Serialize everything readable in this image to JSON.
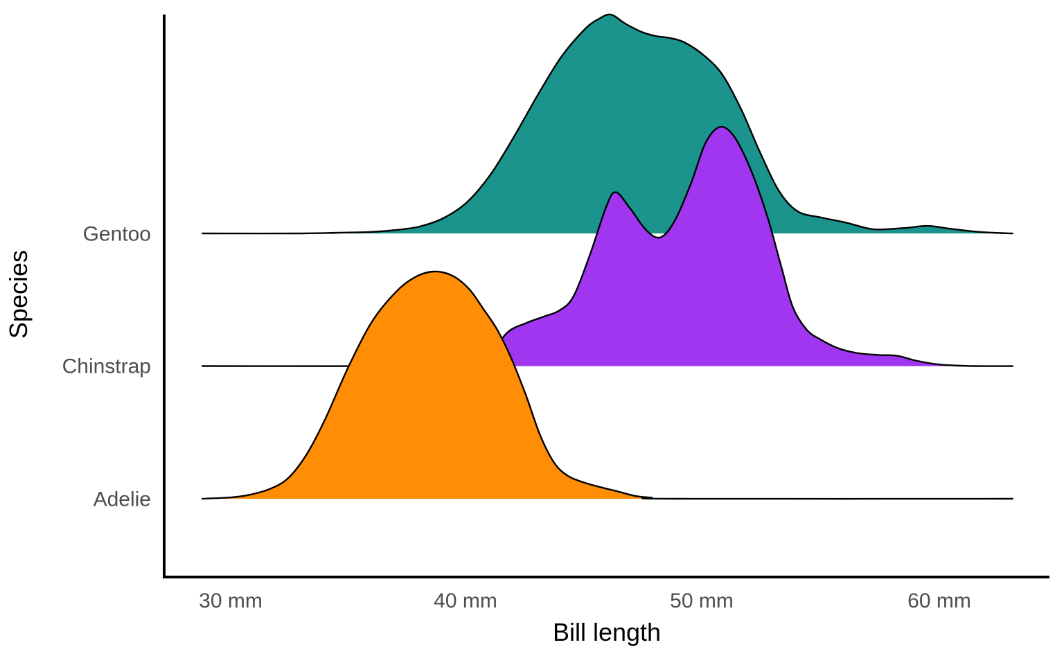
{
  "chart_data": {
    "type": "area",
    "subtype": "ridgeline_density",
    "title": "",
    "xlabel": "Bill length",
    "ylabel": "Species",
    "x_unit": "mm",
    "xlim_mm": [
      27.2,
      63.7
    ],
    "baseline_extent_mm": [
      28.8,
      63.1
    ],
    "grid": "off",
    "legend": "none",
    "x_ticks": [
      {
        "value": 30,
        "label": "30 mm"
      },
      {
        "value": 40,
        "label": "40 mm"
      },
      {
        "value": 50,
        "label": "50 mm"
      },
      {
        "value": 60,
        "label": "60 mm"
      }
    ],
    "rows": [
      "Gentoo",
      "Chinstrap",
      "Adelie"
    ],
    "height_units": "density height expressed so that 1.0 equals the vertical gap between adjacent category baselines",
    "series": [
      {
        "name": "Gentoo",
        "fill": "#1A948D",
        "outline": "#000000",
        "row_index": 0,
        "peaks_mm": [
          46.1,
          48.5
        ],
        "max_height": 1.65,
        "points_mm_height": [
          [
            28.8,
            0
          ],
          [
            33,
            0
          ],
          [
            34.5,
            0.005
          ],
          [
            36,
            0.012
          ],
          [
            37,
            0.026
          ],
          [
            38,
            0.052
          ],
          [
            39,
            0.115
          ],
          [
            40,
            0.235
          ],
          [
            41,
            0.444
          ],
          [
            42,
            0.731
          ],
          [
            43,
            1.044
          ],
          [
            44,
            1.332
          ],
          [
            45,
            1.541
          ],
          [
            45.6,
            1.619
          ],
          [
            46.1,
            1.65
          ],
          [
            46.7,
            1.582
          ],
          [
            47.4,
            1.519
          ],
          [
            48,
            1.488
          ],
          [
            48.6,
            1.473
          ],
          [
            49.2,
            1.441
          ],
          [
            50,
            1.347
          ],
          [
            50.8,
            1.201
          ],
          [
            51.6,
            0.94
          ],
          [
            52.4,
            0.616
          ],
          [
            53.2,
            0.324
          ],
          [
            54,
            0.167
          ],
          [
            55,
            0.12
          ],
          [
            56,
            0.084
          ],
          [
            57,
            0.037
          ],
          [
            57.6,
            0.031
          ],
          [
            58.6,
            0.042
          ],
          [
            59.5,
            0.057
          ],
          [
            60.4,
            0.037
          ],
          [
            61.4,
            0.016
          ],
          [
            62.3,
            0.005
          ],
          [
            63.1,
            0
          ]
        ]
      },
      {
        "name": "Chinstrap",
        "fill": "#A136F0",
        "outline": "#000000",
        "row_index": 1,
        "peaks_mm": [
          46.3,
          50.8
        ],
        "max_height": 1.8,
        "points_mm_height": [
          [
            28.8,
            0
          ],
          [
            39.5,
            0
          ],
          [
            40.2,
            0.01
          ],
          [
            40.9,
            0.063
          ],
          [
            41.7,
            0.251
          ],
          [
            42.5,
            0.324
          ],
          [
            43.3,
            0.376
          ],
          [
            43.9,
            0.418
          ],
          [
            44.5,
            0.522
          ],
          [
            45.2,
            0.835
          ],
          [
            45.9,
            1.201
          ],
          [
            46.3,
            1.311
          ],
          [
            46.9,
            1.191
          ],
          [
            47.6,
            1.023
          ],
          [
            48.2,
            0.971
          ],
          [
            48.8,
            1.096
          ],
          [
            49.5,
            1.384
          ],
          [
            50.1,
            1.681
          ],
          [
            50.7,
            1.802
          ],
          [
            51.3,
            1.734
          ],
          [
            52,
            1.488
          ],
          [
            52.7,
            1.138
          ],
          [
            53.3,
            0.757
          ],
          [
            53.8,
            0.444
          ],
          [
            54.4,
            0.272
          ],
          [
            55,
            0.198
          ],
          [
            55.7,
            0.136
          ],
          [
            56.5,
            0.099
          ],
          [
            57.4,
            0.084
          ],
          [
            58.2,
            0.078
          ],
          [
            59,
            0.042
          ],
          [
            59.8,
            0.016
          ],
          [
            60.6,
            0.005
          ],
          [
            61.5,
            0
          ],
          [
            63.1,
            0
          ]
        ]
      },
      {
        "name": "Adelie",
        "fill": "#FF8D05",
        "outline": "#000000",
        "row_index": 2,
        "peaks_mm": [
          38.6
        ],
        "max_height": 1.71,
        "points_mm_height": [
          [
            28.8,
            0
          ],
          [
            30,
            0.01
          ],
          [
            30.8,
            0.03
          ],
          [
            31.6,
            0.07
          ],
          [
            32.4,
            0.15
          ],
          [
            33.2,
            0.33
          ],
          [
            34,
            0.6
          ],
          [
            35,
            1.0
          ],
          [
            36,
            1.34
          ],
          [
            37,
            1.56
          ],
          [
            37.8,
            1.67
          ],
          [
            38.6,
            1.713
          ],
          [
            39.4,
            1.68
          ],
          [
            40.1,
            1.58
          ],
          [
            40.7,
            1.43
          ],
          [
            41.3,
            1.27
          ],
          [
            41.9,
            1.05
          ],
          [
            42.5,
            0.78
          ],
          [
            43.1,
            0.48
          ],
          [
            43.7,
            0.27
          ],
          [
            44.3,
            0.17
          ],
          [
            45,
            0.12
          ],
          [
            45.7,
            0.085
          ],
          [
            46.4,
            0.055
          ],
          [
            47.1,
            0.022
          ],
          [
            47.8,
            0.009
          ],
          [
            48.8,
            0
          ],
          [
            63.1,
            0
          ]
        ]
      }
    ]
  }
}
